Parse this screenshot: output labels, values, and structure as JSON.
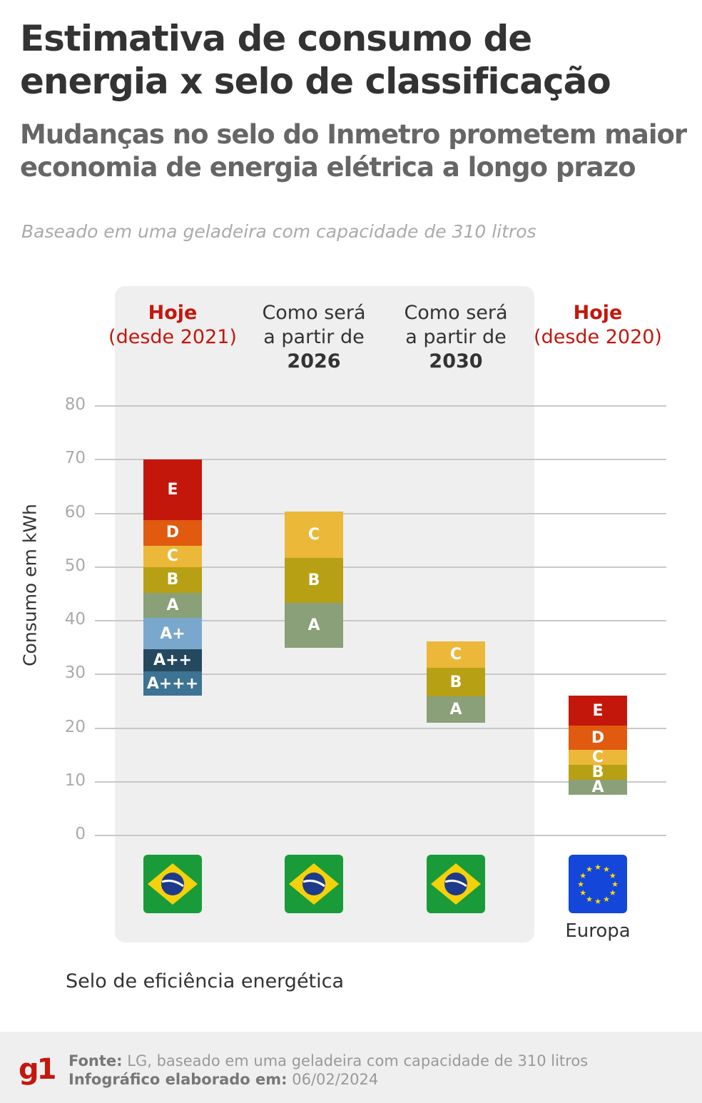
{
  "header": {
    "title": "Estimativa de consumo de energia x selo de classificação",
    "subtitle": "Mudanças no selo do Inmetro prometem maior economia de energia elétrica a longo prazo",
    "note": "Baseado em uma geladeira com capacidade de 310 litros"
  },
  "chart_data": {
    "type": "bar",
    "ylabel": "Consumo em kWh",
    "xlabel": "Selo de eficiência energética",
    "ylim": [
      0,
      80
    ],
    "yticks": [
      "0",
      "10",
      "20",
      "30",
      "40",
      "50",
      "60",
      "70",
      "80"
    ],
    "grid": true,
    "colors": {
      "E": "#c4170c",
      "D": "#e05a10",
      "C": "#ebb83a",
      "B": "#b8a015",
      "A": "#8aa078",
      "A+": "#7aa8cc",
      "A++": "#24495e",
      "A+++": "#3d7393"
    },
    "categories": [
      {
        "head_bold": "Hoje",
        "head_rest": "(desde 2021)",
        "style": "red",
        "flag": "brazil-flag",
        "segments": [
          {
            "label": "A+++",
            "from": 26,
            "to": 30.5
          },
          {
            "label": "A++",
            "from": 30.5,
            "to": 34.7
          },
          {
            "label": "A+",
            "from": 34.7,
            "to": 40.5
          },
          {
            "label": "A",
            "from": 40.5,
            "to": 45.2
          },
          {
            "label": "B",
            "from": 45.2,
            "to": 50
          },
          {
            "label": "C",
            "from": 50,
            "to": 54
          },
          {
            "label": "D",
            "from": 54,
            "to": 58.8
          },
          {
            "label": "E",
            "from": 58.8,
            "to": 70
          }
        ]
      },
      {
        "head_rest": "Como será a partir de",
        "head_bold": "2026",
        "style": "dark",
        "flag": "brazil-flag",
        "segments": [
          {
            "label": "A",
            "from": 35,
            "to": 43.3
          },
          {
            "label": "B",
            "from": 43.3,
            "to": 51.7
          },
          {
            "label": "C",
            "from": 51.7,
            "to": 60.3
          }
        ]
      },
      {
        "head_rest": "Como será a partir de",
        "head_bold": "2030",
        "style": "dark",
        "flag": "brazil-flag",
        "segments": [
          {
            "label": "A",
            "from": 21,
            "to": 25.9
          },
          {
            "label": "B",
            "from": 25.9,
            "to": 31.2
          },
          {
            "label": "C",
            "from": 31.2,
            "to": 36.1
          }
        ]
      },
      {
        "head_bold": "Hoje",
        "head_rest": "(desde 2020)",
        "style": "red",
        "flag": "eu-flag",
        "flag_label": "Europa",
        "segments": [
          {
            "label": "A",
            "from": 7.6,
            "to": 10.3
          },
          {
            "label": "B",
            "from": 10.3,
            "to": 13.1
          },
          {
            "label": "C",
            "from": 13.1,
            "to": 16
          },
          {
            "label": "D",
            "from": 16,
            "to": 20.4
          },
          {
            "label": "E",
            "from": 20.4,
            "to": 26
          }
        ]
      }
    ]
  },
  "footer": {
    "logo": "g1",
    "source_label": "Fonte:",
    "source": "LG, baseado em uma geladeira com capacidade de 310 litros",
    "date_label": "Infográfico elaborado em:",
    "date": "06/02/2024"
  }
}
